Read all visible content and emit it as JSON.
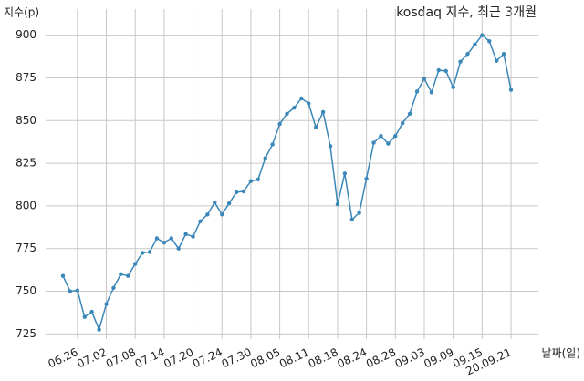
{
  "chart_data": {
    "type": "line",
    "title": "kosdaq 지수, 최근 3개월",
    "y_label": "지수(p)",
    "x_label": "날짜(일)",
    "categories": [
      null,
      null,
      "06.26",
      null,
      null,
      null,
      "07.02",
      null,
      null,
      null,
      "07.08",
      null,
      null,
      null,
      "07.14",
      null,
      null,
      null,
      "07.20",
      null,
      null,
      null,
      "07.24",
      null,
      null,
      null,
      "07.30",
      null,
      null,
      null,
      "08.05",
      null,
      null,
      null,
      "08.11",
      null,
      null,
      null,
      "08.18",
      null,
      null,
      null,
      "08.24",
      null,
      null,
      null,
      "08.28",
      null,
      null,
      null,
      "09.03",
      null,
      null,
      null,
      "09.09",
      null,
      null,
      null,
      "09.15",
      null,
      null,
      null,
      "20.09.21"
    ],
    "series": [
      {
        "name": "kosdaq",
        "color": "#3a87b9",
        "values": [
          759,
          750,
          750.5,
          735,
          738,
          727.5,
          742.5,
          752,
          760,
          759,
          766,
          772.5,
          773,
          781,
          778.5,
          781,
          775,
          783.5,
          782,
          791,
          795,
          802,
          795,
          801.5,
          808,
          808.5,
          814.5,
          815.5,
          828,
          836,
          848,
          854,
          857.5,
          863,
          860,
          846,
          855,
          835,
          801,
          819,
          792,
          796,
          816,
          837,
          841,
          836.5,
          841,
          848.5,
          854,
          867,
          874.5,
          866.5,
          879.5,
          879,
          869.5,
          884.5,
          889,
          894.5,
          900,
          896.5,
          885,
          889,
          868
        ]
      }
    ],
    "ylim": [
      722,
      903
    ],
    "yticks": [
      725,
      750,
      775,
      800,
      825,
      850,
      875,
      900
    ],
    "grid": true
  }
}
